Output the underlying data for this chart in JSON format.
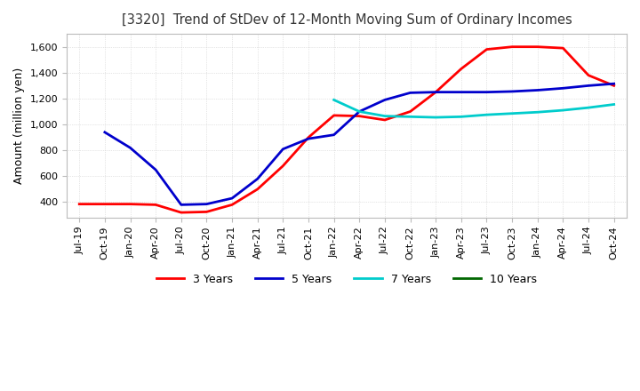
{
  "title": "[3320]  Trend of StDev of 12-Month Moving Sum of Ordinary Incomes",
  "ylabel": "Amount (million yen)",
  "ylim": [
    280,
    1700
  ],
  "yticks": [
    400,
    600,
    800,
    1000,
    1200,
    1400,
    1600
  ],
  "colors": {
    "3 Years": "#ff0000",
    "5 Years": "#0000cc",
    "7 Years": "#00cccc",
    "10 Years": "#006600"
  },
  "x_labels": [
    "Jul-19",
    "Oct-19",
    "Jan-20",
    "Apr-20",
    "Jul-20",
    "Oct-20",
    "Jan-21",
    "Apr-21",
    "Jul-21",
    "Oct-21",
    "Jan-22",
    "Apr-22",
    "Jul-22",
    "Oct-22",
    "Jan-23",
    "Apr-23",
    "Jul-23",
    "Oct-23",
    "Jan-24",
    "Apr-24",
    "Jul-24",
    "Oct-24"
  ],
  "y_3yr": [
    385,
    385,
    385,
    380,
    320,
    325,
    380,
    500,
    680,
    900,
    1070,
    1065,
    1035,
    1100,
    1250,
    1430,
    1580,
    1600,
    1600,
    1590,
    1380,
    1300
  ],
  "y_5yr": [
    null,
    940,
    820,
    650,
    380,
    385,
    430,
    580,
    810,
    890,
    920,
    1100,
    1190,
    1245,
    1250,
    1250,
    1250,
    1255,
    1265,
    1280,
    1300,
    1315
  ],
  "y_7yr": [
    null,
    null,
    null,
    null,
    null,
    null,
    null,
    null,
    null,
    null,
    1190,
    1100,
    1065,
    1060,
    1055,
    1060,
    1075,
    1085,
    1095,
    1110,
    1130,
    1155
  ],
  "y_10yr": [
    null,
    null,
    null,
    null,
    null,
    null,
    null,
    null,
    null,
    null,
    null,
    null,
    null,
    null,
    null,
    null,
    null,
    null,
    null,
    null,
    null,
    null
  ],
  "background_color": "#ffffff",
  "grid_color": "#cccccc"
}
